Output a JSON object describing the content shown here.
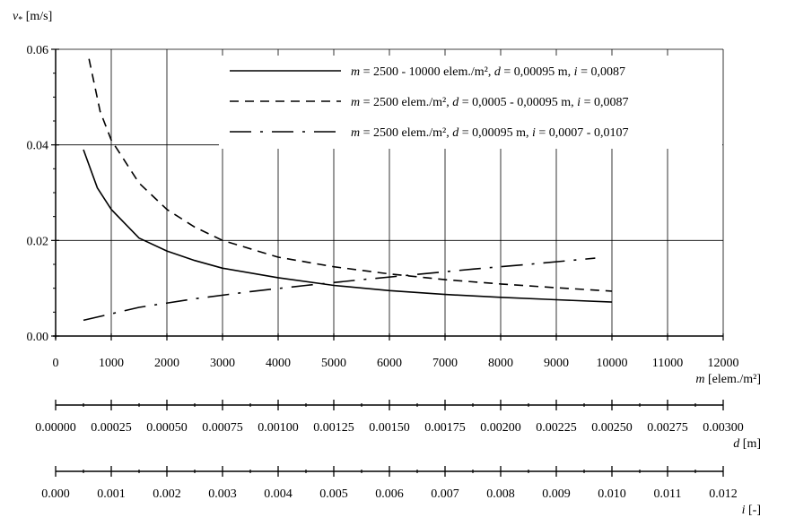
{
  "chart_data": {
    "type": "line",
    "ylabel": {
      "symbol": "v",
      "subscript": "*",
      "unit": " [m/s]"
    },
    "ylim": [
      0,
      0.06
    ],
    "y_ticks": [
      "0.00",
      "0.02",
      "0.04",
      "0.06"
    ],
    "grid": true,
    "legend_position": "top-right",
    "x_axes": [
      {
        "name": "m",
        "unit": "[elem./m²]",
        "range": [
          0,
          12000
        ],
        "ticks": [
          "0",
          "1000",
          "2000",
          "3000",
          "4000",
          "5000",
          "6000",
          "7000",
          "8000",
          "9000",
          "10000",
          "11000",
          "12000"
        ]
      },
      {
        "name": "d",
        "unit": "[m]",
        "range": [
          0,
          0.003
        ],
        "ticks": [
          "0.00000",
          "0.00025",
          "0.00050",
          "0.00075",
          "0.00100",
          "0.00125",
          "0.00150",
          "0.00175",
          "0.00200",
          "0.00225",
          "0.00250",
          "0.00275",
          "0.00300"
        ]
      },
      {
        "name": "i",
        "unit": "[-]",
        "range": [
          0,
          0.012
        ],
        "ticks": [
          "0.000",
          "0.001",
          "0.002",
          "0.003",
          "0.004",
          "0.005",
          "0.006",
          "0.007",
          "0.008",
          "0.009",
          "0.010",
          "0.011",
          "0.012"
        ]
      }
    ],
    "series": [
      {
        "style": "solid",
        "legend": [
          {
            "t": "m",
            "i": true
          },
          {
            "t": " = 2500 - 10000 elem./m², "
          },
          {
            "t": "d",
            "i": true
          },
          {
            "t": " = 0,00095 m, "
          },
          {
            "t": "i",
            "i": true
          },
          {
            "t": " = 0,0087"
          }
        ],
        "x_axis": "m",
        "x": [
          500,
          750,
          1000,
          1500,
          2000,
          2500,
          3000,
          4000,
          5000,
          6000,
          7000,
          8000,
          9000,
          10000
        ],
        "y": [
          0.039,
          0.031,
          0.0265,
          0.0205,
          0.0178,
          0.0158,
          0.0142,
          0.0122,
          0.0106,
          0.0095,
          0.0087,
          0.0081,
          0.0076,
          0.0071
        ]
      },
      {
        "style": "dashed",
        "legend": [
          {
            "t": "m",
            "i": true
          },
          {
            "t": " = 2500 elem./m², "
          },
          {
            "t": "d",
            "i": true
          },
          {
            "t": " = 0,0005 - 0,00095 m, "
          },
          {
            "t": "i",
            "i": true
          },
          {
            "t": " = 0,0087"
          }
        ],
        "x_axis": "m",
        "x": [
          600,
          800,
          1000,
          1500,
          2000,
          2500,
          3000,
          4000,
          5000,
          6000,
          7000,
          8000,
          9000,
          10000
        ],
        "y": [
          0.058,
          0.047,
          0.041,
          0.032,
          0.0265,
          0.0228,
          0.02,
          0.0165,
          0.0145,
          0.013,
          0.0118,
          0.0109,
          0.0101,
          0.0094
        ]
      },
      {
        "style": "dash-dot",
        "legend": [
          {
            "t": "m",
            "i": true
          },
          {
            "t": " = 2500 elem./m², "
          },
          {
            "t": "d",
            "i": true
          },
          {
            "t": " = 0,00095 m, "
          },
          {
            "t": "i",
            "i": true
          },
          {
            "t": " = 0,0007 - 0,0107"
          }
        ],
        "x_axis": "m",
        "x": [
          500,
          1500,
          2500,
          3500,
          4500,
          5500,
          6500,
          7500,
          8500,
          9700
        ],
        "y": [
          0.0033,
          0.006,
          0.0078,
          0.0093,
          0.0106,
          0.0118,
          0.0129,
          0.014,
          0.015,
          0.0163
        ]
      }
    ]
  }
}
